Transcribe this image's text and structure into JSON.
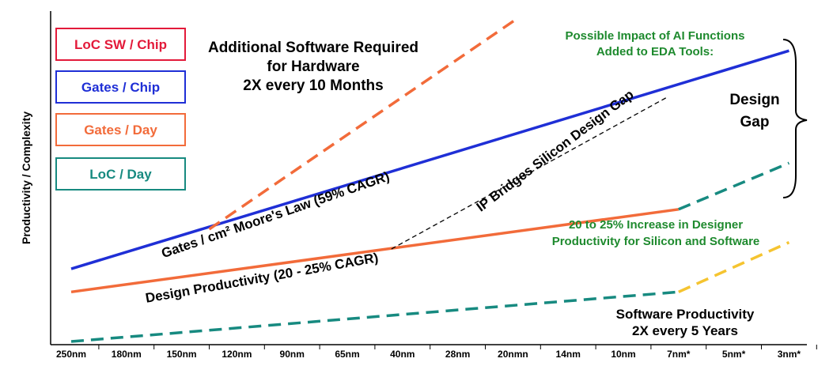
{
  "chart_data": {
    "type": "line",
    "ylabel": "Productivity / Complexity",
    "xlabel": "",
    "categories": [
      "250nm",
      "180nm",
      "150nm",
      "120nm",
      "90nm",
      "65nm",
      "40nm",
      "28nm",
      "20nmn",
      "14nm",
      "10nm",
      "7nm*",
      "5nm*",
      "3nm*"
    ],
    "legend": [
      {
        "label": "LoC SW / Chip",
        "color": "#e31a3a"
      },
      {
        "label": "Gates / Chip",
        "color": "#1f2fd6"
      },
      {
        "label": "Gates / Day",
        "color": "#f26b3a"
      },
      {
        "label": "LoC / Day",
        "color": "#178a80"
      }
    ],
    "legend_position": "top-left",
    "ylim": [
      0,
      100
    ],
    "series": [
      {
        "key": "gates_chip",
        "color": "#1f2fd6",
        "style": "solid",
        "x": [
          0,
          13
        ],
        "y": [
          22,
          88
        ]
      },
      {
        "key": "sw_required",
        "color": "#f26b3a",
        "style": "dashed",
        "x": [
          2.5,
          8.1
        ],
        "y": [
          34,
          98
        ]
      },
      {
        "key": "design_productivity",
        "color": "#f26b3a",
        "style": "solid",
        "x": [
          0,
          11
        ],
        "y": [
          15,
          40
        ]
      },
      {
        "key": "ai_gates",
        "color": "#178a80",
        "style": "dashed",
        "x": [
          11,
          13
        ],
        "y": [
          40,
          54
        ]
      },
      {
        "key": "ip_bridge",
        "color": "#000000",
        "style": "dashed",
        "x": [
          5.8,
          10.8
        ],
        "y": [
          28,
          74
        ]
      },
      {
        "key": "software_productivity",
        "color": "#178a80",
        "style": "dashed",
        "x": [
          0,
          11
        ],
        "y": [
          0,
          15
        ]
      },
      {
        "key": "ai_software",
        "color": "#f5c430",
        "style": "dashed",
        "x": [
          11,
          13
        ],
        "y": [
          15,
          30
        ]
      }
    ],
    "annotations": {
      "sw_required_title": [
        "Additional Software Required",
        "for Hardware",
        "2X every 10 Months"
      ],
      "ai_title": [
        "Possible Impact of AI Functions",
        "Added to EDA Tools:"
      ],
      "design_gap": [
        "Design",
        "Gap"
      ],
      "moores_law": "Gates / cm² Moore's Law (59% CAGR)",
      "design_productivity": "Design Productivity (20 - 25% CAGR)",
      "ip_bridges": "IP Bridges Silicon Design Gap",
      "designer_increase": [
        "20 to 25% Increase in Designer",
        "Productivity for Silicon and Software"
      ],
      "software_productivity": [
        "Software Productivity",
        "2X every 5 Years"
      ]
    },
    "colors": {
      "axis": "#000000",
      "ai_text": "#1e8a2e"
    }
  }
}
